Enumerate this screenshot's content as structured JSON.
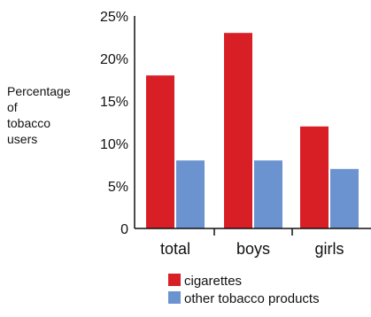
{
  "chart_data": {
    "type": "bar",
    "ylabel_lines": [
      "Percentage",
      "of",
      "tobacco",
      "users"
    ],
    "categories": [
      "total",
      "boys",
      "girls"
    ],
    "yticks": [
      "0",
      "5%",
      "10%",
      "15%",
      "20%",
      "25%"
    ],
    "ylim": [
      0,
      25
    ],
    "grid": false,
    "legend_position": "bottom",
    "series": [
      {
        "name": "cigarettes",
        "color": "#d81f26",
        "values": [
          18,
          23,
          12
        ]
      },
      {
        "name": "other tobacco products",
        "color": "#6b93cf",
        "values": [
          8,
          8,
          7
        ]
      }
    ]
  }
}
